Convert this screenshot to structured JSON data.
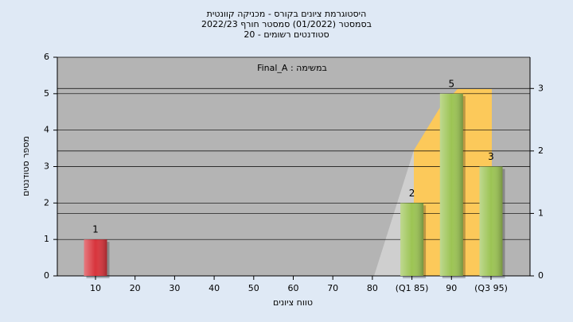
{
  "chart_data": {
    "type": "bar",
    "title": [
      "היסטוגרמת ציונים בקורס - מכניקה קוונטית",
      "בסמסטר  (01/2022)  סמסטר חורף 2022/23",
      "סטודנטים רשומים - 20"
    ],
    "annotation": "Final_A : במשימה",
    "xlabel": "טווח ציונים",
    "ylabel": "מספר סטודנטים",
    "categories": [
      "10",
      "20",
      "30",
      "40",
      "50",
      "60",
      "70",
      "80",
      "(Q1 85)",
      "90",
      "(Q3 95)"
    ],
    "values": [
      1,
      0,
      0,
      0,
      0,
      0,
      0,
      0,
      2,
      5,
      3
    ],
    "value_labels": [
      "1",
      null,
      null,
      null,
      null,
      null,
      null,
      null,
      "2",
      "5",
      "3"
    ],
    "colors": [
      "#d8343c",
      "#9cc454",
      "#9cc454",
      "#9cc454",
      "#9cc454",
      "#9cc454",
      "#9cc454",
      "#9cc454",
      "#9cc454",
      "#9cc454",
      "#9cc454"
    ],
    "ylim": [
      0,
      6
    ],
    "yticks": [
      0,
      1,
      2,
      3,
      4,
      5,
      6
    ],
    "y2lim": [
      0,
      3.5
    ],
    "y2ticks": [
      0,
      1,
      2,
      3
    ],
    "grid": true
  }
}
